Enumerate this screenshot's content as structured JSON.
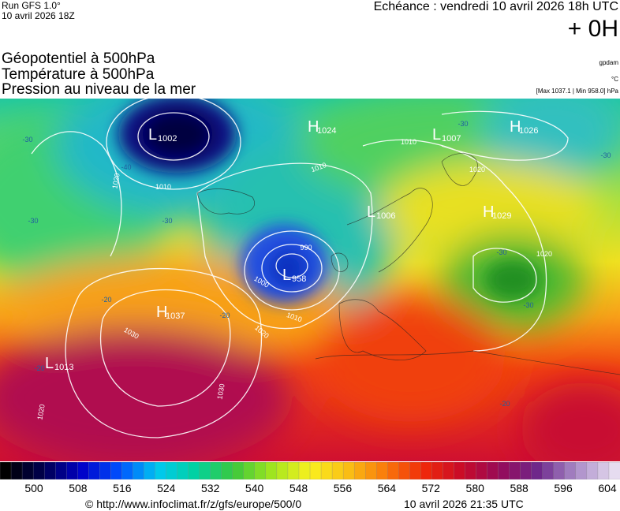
{
  "header": {
    "run": "Run GFS 1.0°",
    "run_date": "10 avril 2026 18Z",
    "forecast": "Echéance : vendredi 10 avril 2026 18h UTC",
    "lead": "+ 0H",
    "fields": [
      "Géopotentiel à 500hPa",
      "Température à 500hPa",
      "Pression au niveau de la mer"
    ],
    "units": [
      "gpdam",
      "°C",
      "[Max 1037.1 | Min 958.0] hPa"
    ]
  },
  "map": {
    "pressure_centers": [
      {
        "letter": "L",
        "value": 1002
      },
      {
        "letter": "H",
        "value": 1024
      },
      {
        "letter": "L",
        "value": 1007
      },
      {
        "letter": "H",
        "value": 1026
      },
      {
        "letter": "L",
        "value": 1006
      },
      {
        "letter": "H",
        "value": 1029
      },
      {
        "letter": "L",
        "value": 958
      },
      {
        "letter": "H",
        "value": 1037
      },
      {
        "letter": "L",
        "value": 1013
      }
    ],
    "isobar_labels": [
      1020,
      1010,
      1010,
      1010,
      990,
      1000,
      1010,
      1020,
      1030,
      1030,
      1020,
      1020,
      1020
    ],
    "temperature_labels": [
      -30,
      -30,
      -30,
      -40,
      -30,
      -30,
      -30,
      -30,
      -20,
      -20,
      -20,
      -20
    ]
  },
  "colorbar": {
    "labels": [
      500,
      508,
      516,
      524,
      532,
      540,
      548,
      556,
      564,
      572,
      580,
      588,
      596,
      604
    ]
  },
  "footer": {
    "source": "© http://www.infoclimat.fr/z/gfs/europe/500/0",
    "generated": "10 avril 2026 21:35 UTC"
  }
}
